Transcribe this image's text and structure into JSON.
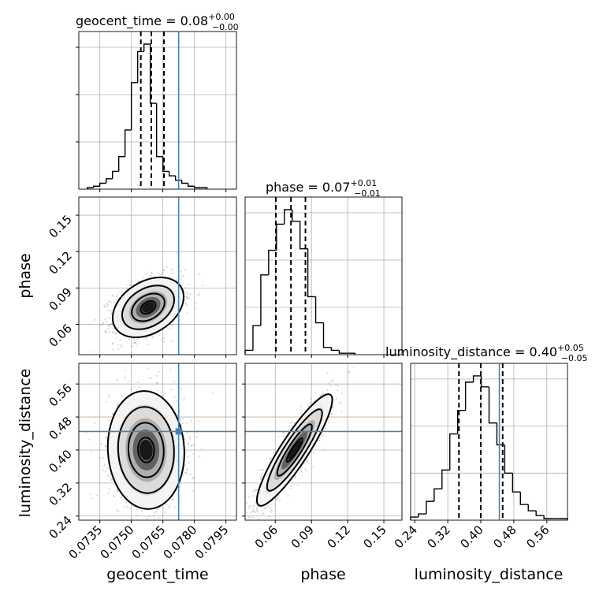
{
  "chart_data": {
    "type": "corner",
    "truth_color": "#4682b4",
    "parameters": [
      {
        "name": "geocent_time",
        "label": "geocent_time",
        "title": "geocent_time = 0.08",
        "title_up": "+0.00",
        "title_down": "−0.00",
        "range": [
          0.0725,
          0.08
        ],
        "ticks": [
          0.0735,
          0.075,
          0.0765,
          0.078,
          0.0795
        ],
        "tick_labels": [
          "0.0735",
          "0.0750",
          "0.0765",
          "0.0780",
          "0.0795"
        ],
        "quantiles": [
          0.07545,
          0.07595,
          0.07655
        ],
        "truth": 0.07725,
        "hist_edges_start": 0.0729,
        "hist_bin_width": 0.0003,
        "hist_counts": [
          1,
          2,
          4,
          7,
          12,
          22,
          40,
          72,
          93,
          98,
          58,
          22,
          12,
          9,
          6,
          4,
          2,
          1,
          1
        ]
      },
      {
        "name": "phase",
        "label": "phase",
        "title": "phase = 0.07",
        "title_up": "+0.01",
        "title_down": "−0.01",
        "range": [
          0.035,
          0.165
        ],
        "ticks": [
          0.06,
          0.09,
          0.12,
          0.15
        ],
        "tick_labels": [
          "0.06",
          "0.09",
          "0.12",
          "0.15"
        ],
        "quantiles": [
          0.0605,
          0.073,
          0.085
        ],
        "truth": null,
        "hist_edges_start": 0.035,
        "hist_bin_width": 0.0065,
        "hist_counts": [
          3,
          20,
          55,
          72,
          90,
          100,
          92,
          73,
          40,
          22,
          5,
          3,
          1,
          1
        ]
      },
      {
        "name": "luminosity_distance",
        "label": "luminosity_distance",
        "title": "luminosity_distance = 0.40",
        "title_up": "+0.05",
        "title_down": "−0.05",
        "range": [
          0.23,
          0.61
        ],
        "ticks": [
          0.24,
          0.32,
          0.4,
          0.48,
          0.56
        ],
        "tick_labels": [
          "0.24",
          "0.32",
          "0.40",
          "0.48",
          "0.56"
        ],
        "quantiles": [
          0.347,
          0.4,
          0.453
        ],
        "truth": 0.445,
        "hist_edges_start": 0.23,
        "hist_bin_width": 0.019,
        "hist_counts": [
          2,
          4,
          12,
          20,
          32,
          55,
          70,
          88,
          92,
          85,
          62,
          48,
          30,
          18,
          10,
          6,
          3,
          1,
          1,
          1
        ]
      }
    ],
    "cells": {
      "phase_vs_geocent_time": {
        "center": [
          0.0758,
          0.074
        ],
        "spread": [
          0.00065,
          0.0095
        ],
        "corr": 0.35,
        "truth_x": 0.07725,
        "truth_y": null
      },
      "luminosity_distance_vs_geocent_time": {
        "center": [
          0.0757,
          0.4
        ],
        "spread": [
          0.0007,
          0.055
        ],
        "corr": -0.05,
        "truth_x": 0.07725,
        "truth_y": 0.445
      },
      "luminosity_distance_vs_phase": {
        "center": [
          0.076,
          0.4
        ],
        "spread": [
          0.012,
          0.052
        ],
        "corr": 0.9,
        "truth_x": null,
        "truth_y": 0.445
      }
    }
  }
}
